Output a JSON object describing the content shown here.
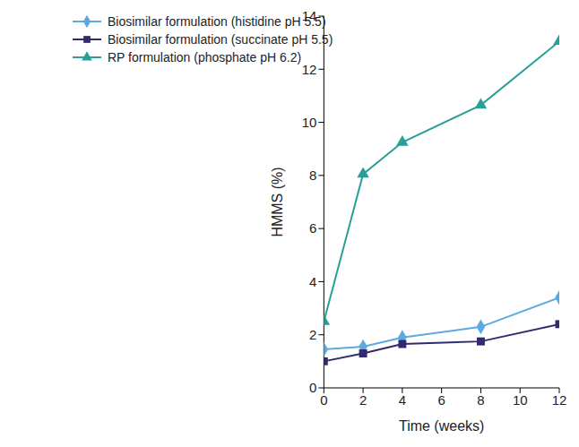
{
  "chart_data": {
    "type": "line",
    "x_label": "Time (weeks)",
    "y_label": "HMMS (%)",
    "x": [
      0,
      2,
      4,
      8,
      12
    ],
    "xlim": [
      0,
      12
    ],
    "xticks": [
      0,
      2,
      4,
      6,
      8,
      10,
      12
    ],
    "ylim": [
      0,
      14
    ],
    "yticks": [
      0,
      2,
      4,
      6,
      8,
      10,
      12,
      14
    ],
    "grid": false,
    "legend": "upper left",
    "series": [
      {
        "name": "Biosimilar formulation (histidine pH 5.5)",
        "color": "#5aaadf",
        "marker": "diamond",
        "values": [
          1.45,
          1.55,
          1.9,
          2.3,
          3.4
        ]
      },
      {
        "name": "Biosimilar formulation (succinate pH 5.5)",
        "color": "#2f2b6e",
        "marker": "square",
        "values": [
          1.0,
          1.3,
          1.65,
          1.75,
          2.4
        ]
      },
      {
        "name": "RP formulation (phosphate pH 6.2)",
        "color": "#2a9f98",
        "marker": "triangle",
        "values": [
          2.5,
          8.05,
          9.25,
          10.65,
          13.05
        ]
      }
    ]
  }
}
